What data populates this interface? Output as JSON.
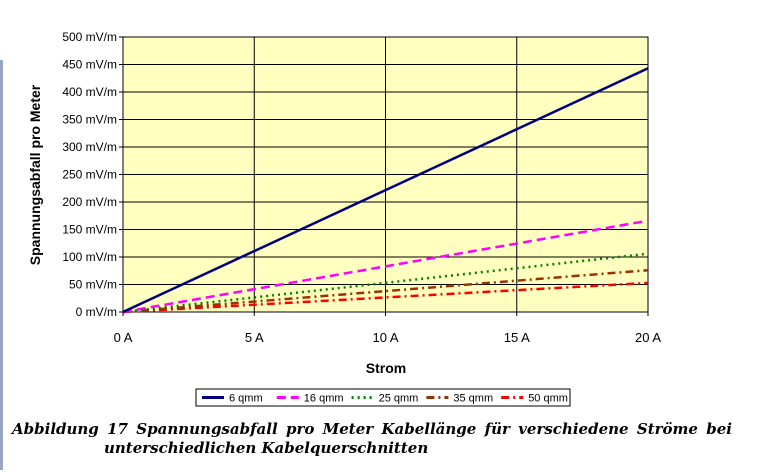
{
  "chart_data": {
    "type": "line",
    "title": "",
    "xlabel": "Strom",
    "ylabel": "Spannungsabfall pro Meter",
    "x": [
      0,
      20
    ],
    "xlim": [
      0,
      20
    ],
    "ylim": [
      0,
      500
    ],
    "x_ticks": [
      "0 A",
      "5 A",
      "10 A",
      "15 A",
      "20 A"
    ],
    "y_ticks": [
      "0 mV/m",
      "50 mV/m",
      "100 mV/m",
      "150 mV/m",
      "200 mV/m",
      "250 mV/m",
      "300 mV/m",
      "350 mV/m",
      "400 mV/m",
      "450 mV/m",
      "500 mV/m"
    ],
    "grid": true,
    "legend_position": "bottom",
    "plot_background": "#ffffc0",
    "series": [
      {
        "name": "6 qmm",
        "values": [
          0,
          443
        ],
        "color": "#000080",
        "style": "solid"
      },
      {
        "name": "16 qmm",
        "values": [
          0,
          166
        ],
        "color": "#ff00ff",
        "style": "dashed"
      },
      {
        "name": "25 qmm",
        "values": [
          0,
          106
        ],
        "color": "#008000",
        "style": "dotted"
      },
      {
        "name": "35 qmm",
        "values": [
          0,
          76
        ],
        "color": "#993300",
        "style": "dashdot"
      },
      {
        "name": "50 qmm",
        "values": [
          0,
          53
        ],
        "color": "#ff0000",
        "style": "dashdot"
      }
    ]
  },
  "caption": {
    "line1": "Abbildung 17 Spannungsabfall pro Meter Kabellänge für verschiedene Ströme bei",
    "line2": "unterschiedlichen Kabelquerschnitten"
  }
}
